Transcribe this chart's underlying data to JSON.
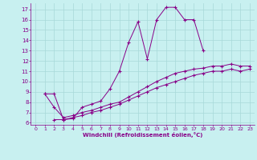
{
  "xlabel": "Windchill (Refroidissement éolien,°C)",
  "bg_color": "#c8f0f0",
  "grid_color": "#a8d8d8",
  "line_color": "#880088",
  "xlim": [
    -0.5,
    23.5
  ],
  "ylim": [
    5.8,
    17.6
  ],
  "xticks": [
    0,
    1,
    2,
    3,
    4,
    5,
    6,
    7,
    8,
    9,
    10,
    11,
    12,
    13,
    14,
    15,
    16,
    17,
    18,
    19,
    20,
    21,
    22,
    23
  ],
  "yticks": [
    6,
    7,
    8,
    9,
    10,
    11,
    12,
    13,
    14,
    15,
    16,
    17
  ],
  "line1_x": [
    1,
    2,
    3,
    4,
    5,
    6,
    7,
    8,
    9,
    10,
    11,
    12,
    13,
    14,
    15,
    16,
    17,
    18
  ],
  "line1_y": [
    8.8,
    8.8,
    6.3,
    6.4,
    7.5,
    7.8,
    8.1,
    9.3,
    11.0,
    13.8,
    15.8,
    12.2,
    16.0,
    17.2,
    17.2,
    16.0,
    16.0,
    13.0
  ],
  "line2_x": [
    1,
    2,
    3,
    4,
    5,
    6,
    7,
    8,
    9,
    10,
    11,
    12,
    13,
    14,
    15,
    16,
    17,
    18,
    19,
    20,
    21,
    22,
    23
  ],
  "line2_y": [
    8.8,
    7.5,
    6.5,
    6.7,
    7.0,
    7.2,
    7.5,
    7.8,
    8.0,
    8.5,
    9.0,
    9.5,
    10.0,
    10.4,
    10.8,
    11.0,
    11.2,
    11.3,
    11.5,
    11.5,
    11.7,
    11.5,
    11.5
  ],
  "line3_x": [
    2,
    3,
    4,
    5,
    6,
    7,
    8,
    9,
    10,
    11,
    12,
    13,
    14,
    15,
    16,
    17,
    18,
    19,
    20,
    21,
    22,
    23
  ],
  "line3_y": [
    6.3,
    6.3,
    6.5,
    6.7,
    7.0,
    7.2,
    7.5,
    7.8,
    8.2,
    8.6,
    9.0,
    9.4,
    9.7,
    10.0,
    10.3,
    10.6,
    10.8,
    11.0,
    11.0,
    11.2,
    11.0,
    11.2
  ]
}
